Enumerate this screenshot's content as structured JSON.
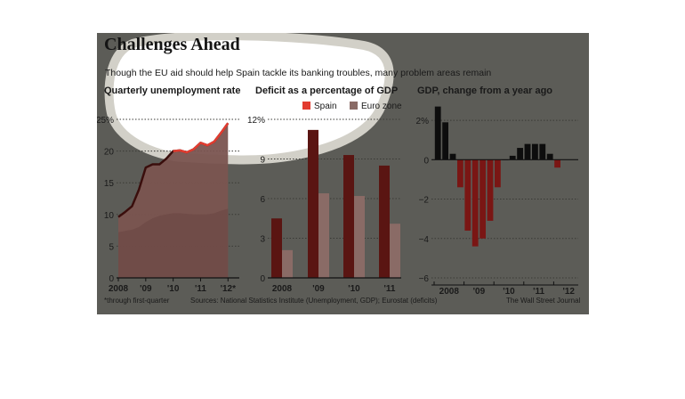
{
  "header": {
    "title": "Challenges Ahead",
    "subtitle": "Though the EU aid should help Spain tackle its banking troubles, many problem areas remain"
  },
  "legend": {
    "spain": "Spain",
    "euro_zone": "Euro zone"
  },
  "colors": {
    "spain": "#e23c30",
    "spain_bar": "#5a1512",
    "euro_zone": "#8a6b66",
    "unemployment_fill": "#7a5450",
    "gdp_positive": "#0d0d0d",
    "gdp_negative": "#7a1614",
    "highlight": "#d2d0c8"
  },
  "footer": {
    "note": "*through first-quarter",
    "sources": "Sources: National Statistics Institute (Unemployment, GDP); Eurostat (deficits)",
    "credit": "The Wall Street Journal"
  },
  "chart_data": [
    {
      "type": "line",
      "title": "Quarterly unemployment rate",
      "ylim": [
        0,
        25
      ],
      "yticks": [
        0,
        5,
        10,
        15,
        20,
        25
      ],
      "ytick_labels": [
        "0",
        "5",
        "10",
        "15",
        "20",
        "25%"
      ],
      "xlim": [
        2008.0,
        2012.25
      ],
      "xticks": [
        2008,
        2009,
        2010,
        2011,
        2012
      ],
      "xtick_labels": [
        "2008",
        "'09",
        "'10",
        "'11",
        "'12*"
      ],
      "series": [
        {
          "name": "Spain",
          "x": [
            2008.0,
            2008.25,
            2008.5,
            2008.75,
            2009.0,
            2009.25,
            2009.5,
            2009.75,
            2010.0,
            2010.25,
            2010.5,
            2010.75,
            2011.0,
            2011.25,
            2011.5,
            2011.75,
            2012.0
          ],
          "values": [
            9.6,
            10.4,
            11.3,
            13.9,
            17.4,
            17.9,
            17.9,
            18.8,
            20.0,
            20.1,
            19.8,
            20.3,
            21.3,
            20.9,
            21.5,
            22.9,
            24.4
          ]
        },
        {
          "name": "Euro zone",
          "x": [
            2008.0,
            2008.25,
            2008.5,
            2008.75,
            2009.0,
            2009.25,
            2009.5,
            2009.75,
            2010.0,
            2010.25,
            2010.5,
            2010.75,
            2011.0,
            2011.25,
            2011.5,
            2011.75,
            2012.0
          ],
          "values": [
            7.2,
            7.4,
            7.6,
            8.0,
            8.8,
            9.4,
            9.8,
            10.0,
            10.2,
            10.2,
            10.1,
            10.0,
            10.0,
            10.0,
            10.2,
            10.6,
            10.9
          ]
        }
      ]
    },
    {
      "type": "bar",
      "title": "Deficit as a percentage of GDP",
      "ylim": [
        0,
        12
      ],
      "yticks": [
        0,
        3,
        6,
        9,
        12
      ],
      "ytick_labels": [
        "0",
        "3",
        "6",
        "9",
        "12%"
      ],
      "categories": [
        "2008",
        "'09",
        "'10",
        "'11"
      ],
      "series": [
        {
          "name": "Spain",
          "values": [
            4.5,
            11.2,
            9.3,
            8.5
          ]
        },
        {
          "name": "Euro zone",
          "values": [
            2.1,
            6.4,
            6.2,
            4.1
          ]
        }
      ]
    },
    {
      "type": "bar",
      "title": "GDP, change from a year ago",
      "ylim": [
        -6,
        3
      ],
      "yticks": [
        -6,
        -4,
        -2,
        0,
        2
      ],
      "ytick_labels": [
        "−6",
        "−4",
        "−2",
        "0",
        "2%"
      ],
      "xtick_labels": [
        "2008",
        "'09",
        "'10",
        "'11",
        "'12"
      ],
      "categories": [
        "Q1 2008",
        "Q2 2008",
        "Q3 2008",
        "Q4 2008",
        "Q1 2009",
        "Q2 2009",
        "Q3 2009",
        "Q4 2009",
        "Q1 2010",
        "Q2 2010",
        "Q3 2010",
        "Q4 2010",
        "Q1 2011",
        "Q2 2011",
        "Q3 2011",
        "Q4 2011",
        "Q1 2012"
      ],
      "values": [
        2.7,
        1.9,
        0.3,
        -1.4,
        -3.6,
        -4.4,
        -4.0,
        -3.1,
        -1.4,
        0.0,
        0.2,
        0.6,
        0.8,
        0.8,
        0.8,
        0.3,
        -0.4
      ]
    }
  ]
}
